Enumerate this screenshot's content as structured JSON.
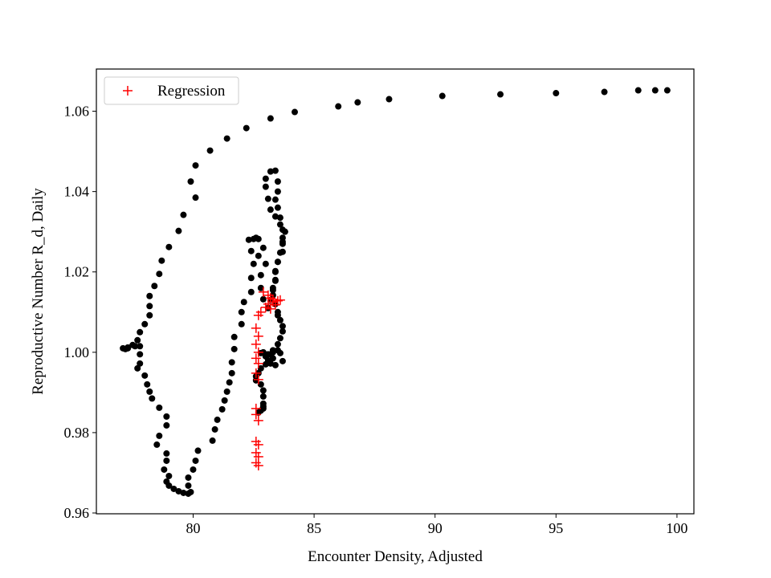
{
  "chart_data": {
    "type": "scatter",
    "xlabel": "Encounter Density, Adjusted",
    "ylabel": "Reproductive Number R_d, Daily",
    "xlim": [
      76.0,
      100.7
    ],
    "ylim": [
      0.9598,
      1.0705
    ],
    "xticks": [
      80,
      85,
      90,
      95,
      100
    ],
    "yticks": [
      0.96,
      0.98,
      1.0,
      1.02,
      1.04,
      1.06
    ],
    "ytick_labels": [
      "0.96",
      "0.98",
      "1.00",
      "1.02",
      "1.04",
      "1.06"
    ],
    "grid": false,
    "legend": {
      "placement": "top-left",
      "entries": [
        "Regression"
      ]
    },
    "colors": {
      "data": "#000000",
      "regression": "#ff0000"
    },
    "series": [
      {
        "marker": "dot",
        "points": [
          [
            99.6,
            1.0652
          ],
          [
            99.1,
            1.0652
          ],
          [
            98.4,
            1.0652
          ],
          [
            97.0,
            1.0648
          ],
          [
            95.0,
            1.0645
          ],
          [
            92.7,
            1.0642
          ],
          [
            90.3,
            1.0638
          ],
          [
            88.1,
            1.063
          ],
          [
            86.8,
            1.0622
          ],
          [
            86.0,
            1.0612
          ],
          [
            84.2,
            1.0598
          ],
          [
            83.2,
            1.0582
          ],
          [
            82.2,
            1.0558
          ],
          [
            81.4,
            1.0532
          ],
          [
            80.7,
            1.0502
          ],
          [
            80.1,
            1.0465
          ],
          [
            79.9,
            1.0425
          ],
          [
            80.1,
            1.0385
          ],
          [
            79.6,
            1.0342
          ],
          [
            79.4,
            1.0302
          ],
          [
            79.0,
            1.0262
          ],
          [
            78.7,
            1.0228
          ],
          [
            78.6,
            1.0195
          ],
          [
            78.4,
            1.0165
          ],
          [
            78.2,
            1.014
          ],
          [
            78.2,
            1.0115
          ],
          [
            78.2,
            1.0092
          ],
          [
            78.0,
            1.007
          ],
          [
            77.8,
            1.005
          ],
          [
            77.7,
            1.003
          ],
          [
            77.5,
            1.0018
          ],
          [
            77.3,
            1.001
          ],
          [
            77.2,
            1.0008
          ],
          [
            77.1,
            1.001
          ],
          [
            77.3,
            1.0012
          ],
          [
            77.6,
            1.0015
          ],
          [
            77.8,
            1.0015
          ],
          [
            77.8,
            0.9995
          ],
          [
            77.8,
            0.9972
          ],
          [
            77.7,
            0.996
          ],
          [
            78.0,
            0.9942
          ],
          [
            78.1,
            0.992
          ],
          [
            78.2,
            0.9902
          ],
          [
            78.3,
            0.9885
          ],
          [
            78.6,
            0.9862
          ],
          [
            78.9,
            0.984
          ],
          [
            78.9,
            0.9818
          ],
          [
            78.6,
            0.9792
          ],
          [
            78.5,
            0.977
          ],
          [
            78.9,
            0.9748
          ],
          [
            78.9,
            0.973
          ],
          [
            78.8,
            0.9708
          ],
          [
            79.0,
            0.9692
          ],
          [
            78.9,
            0.9678
          ],
          [
            79.0,
            0.9668
          ],
          [
            79.2,
            0.966
          ],
          [
            79.4,
            0.9654
          ],
          [
            79.6,
            0.965
          ],
          [
            79.8,
            0.9648
          ],
          [
            79.9,
            0.9652
          ],
          [
            79.8,
            0.9668
          ],
          [
            79.8,
            0.9688
          ],
          [
            80.0,
            0.9708
          ],
          [
            80.1,
            0.973
          ],
          [
            80.2,
            0.9755
          ],
          [
            80.8,
            0.978
          ],
          [
            80.9,
            0.9808
          ],
          [
            81.0,
            0.9832
          ],
          [
            81.2,
            0.9858
          ],
          [
            81.3,
            0.988
          ],
          [
            81.4,
            0.9902
          ],
          [
            81.5,
            0.9925
          ],
          [
            81.6,
            0.9948
          ],
          [
            81.6,
            0.9975
          ],
          [
            81.7,
            1.0008
          ],
          [
            81.7,
            1.0038
          ],
          [
            82.0,
            1.007
          ],
          [
            82.0,
            1.01
          ],
          [
            82.1,
            1.0125
          ],
          [
            82.4,
            1.015
          ],
          [
            82.4,
            1.0185
          ],
          [
            82.5,
            1.022
          ],
          [
            82.4,
            1.0252
          ],
          [
            82.3,
            1.028
          ],
          [
            82.5,
            1.0282
          ],
          [
            82.6,
            1.0285
          ],
          [
            82.7,
            1.0282
          ],
          [
            82.9,
            1.026
          ],
          [
            82.7,
            1.024
          ],
          [
            83.0,
            1.022
          ],
          [
            82.8,
            1.0192
          ],
          [
            82.8,
            1.016
          ],
          [
            82.9,
            1.0132
          ],
          [
            83.1,
            1.011
          ],
          [
            83.2,
            1.013
          ],
          [
            83.3,
            1.0155
          ],
          [
            83.4,
            1.0178
          ],
          [
            83.4,
            1.0202
          ],
          [
            83.5,
            1.0225
          ],
          [
            83.6,
            1.0248
          ],
          [
            83.7,
            1.027
          ],
          [
            83.7,
            1.0285
          ],
          [
            83.8,
            1.03
          ],
          [
            83.6,
            1.0318
          ],
          [
            83.4,
            1.0338
          ],
          [
            83.2,
            1.0355
          ],
          [
            83.1,
            1.0382
          ],
          [
            83.0,
            1.0412
          ],
          [
            83.0,
            1.0432
          ],
          [
            83.2,
            1.045
          ],
          [
            83.4,
            1.0452
          ],
          [
            83.5,
            1.0425
          ],
          [
            83.5,
            1.04
          ],
          [
            83.4,
            1.038
          ],
          [
            83.5,
            1.036
          ],
          [
            83.6,
            1.0335
          ],
          [
            83.7,
            1.0305
          ],
          [
            83.7,
            1.0275
          ],
          [
            83.7,
            1.025
          ],
          [
            83.5,
            1.0225
          ],
          [
            83.4,
            1.02
          ],
          [
            83.4,
            1.018
          ],
          [
            83.3,
            1.016
          ],
          [
            83.3,
            1.0142
          ],
          [
            83.4,
            1.012
          ],
          [
            83.5,
            1.01
          ],
          [
            83.5,
            1.0092
          ],
          [
            83.6,
            1.008
          ],
          [
            83.7,
            1.0065
          ],
          [
            83.7,
            1.0052
          ],
          [
            83.6,
            1.0035
          ],
          [
            83.5,
            1.002
          ],
          [
            83.3,
            1.0005
          ],
          [
            83.2,
            0.9995
          ],
          [
            83.1,
            0.998
          ],
          [
            83.0,
            0.997
          ],
          [
            82.8,
            0.996
          ],
          [
            82.7,
            0.9948
          ],
          [
            82.6,
            0.994
          ],
          [
            82.6,
            0.993
          ],
          [
            82.8,
            0.992
          ],
          [
            82.9,
            0.9905
          ],
          [
            82.9,
            0.989
          ],
          [
            82.9,
            0.9872
          ],
          [
            82.9,
            0.986
          ],
          [
            82.8,
            0.9855
          ],
          [
            82.7,
            0.985
          ],
          [
            82.9,
            0.9865
          ],
          [
            83.0,
            0.999
          ],
          [
            83.1,
            0.9995
          ],
          [
            83.3,
            1.0
          ],
          [
            83.5,
            1.0005
          ],
          [
            83.6,
            0.9998
          ],
          [
            83.7,
            0.9978
          ],
          [
            83.4,
            0.9968
          ],
          [
            83.2,
            0.9972
          ],
          [
            83.0,
            0.999
          ],
          [
            82.8,
            0.9998
          ],
          [
            82.9,
            1.0
          ],
          [
            83.3,
            0.9985
          ]
        ]
      },
      {
        "name": "Regression",
        "marker": "plus",
        "points": [
          [
            82.7,
            1.0092
          ],
          [
            82.8,
            1.01
          ],
          [
            82.6,
            1.006
          ],
          [
            82.7,
            1.004
          ],
          [
            82.6,
            1.002
          ],
          [
            82.7,
            1.0
          ],
          [
            82.6,
            0.9985
          ],
          [
            82.7,
            0.9972
          ],
          [
            82.6,
            0.9948
          ],
          [
            82.7,
            0.9932
          ],
          [
            82.6,
            0.986
          ],
          [
            82.6,
            0.9845
          ],
          [
            82.7,
            0.983
          ],
          [
            82.6,
            0.9778
          ],
          [
            82.7,
            0.977
          ],
          [
            82.6,
            0.975
          ],
          [
            82.7,
            0.974
          ],
          [
            82.6,
            0.9725
          ],
          [
            82.7,
            0.9718
          ],
          [
            82.9,
            1.015
          ],
          [
            83.1,
            1.0142
          ],
          [
            83.2,
            1.0135
          ],
          [
            83.3,
            1.0125
          ],
          [
            83.4,
            1.0118
          ],
          [
            83.5,
            1.0128
          ],
          [
            83.1,
            1.012
          ],
          [
            83.0,
            1.0112
          ],
          [
            83.2,
            1.0108
          ],
          [
            83.3,
            1.0132
          ],
          [
            83.6,
            1.013
          ]
        ]
      }
    ]
  }
}
